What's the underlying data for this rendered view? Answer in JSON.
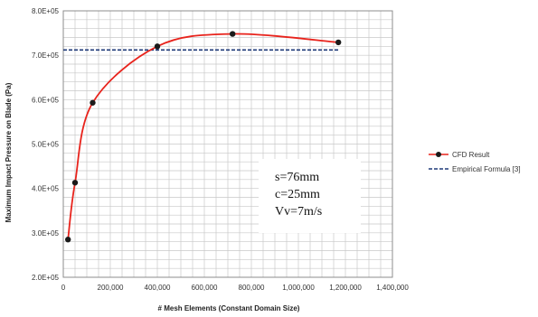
{
  "chart_data": {
    "type": "line",
    "title": "",
    "xlabel": "# Mesh Elements (Constant Domain Size)",
    "ylabel": "Maximum Impact Pressure on Blade (Pa)",
    "xlim": [
      0,
      1400000
    ],
    "ylim": [
      200000,
      800000
    ],
    "x_ticks": [
      0,
      200000,
      400000,
      600000,
      800000,
      1000000,
      1200000,
      1400000
    ],
    "x_tick_labels": [
      "0",
      "200,000",
      "400,000",
      "600,000",
      "800,000",
      "1,000,000",
      "1,200,000",
      "1,400,000"
    ],
    "y_ticks": [
      200000,
      300000,
      400000,
      500000,
      600000,
      700000,
      800000
    ],
    "y_tick_labels": [
      "2.0E+05",
      "3.0E+05",
      "4.0E+05",
      "5.0E+05",
      "6.0E+05",
      "7.0E+05",
      "8.0E+05"
    ],
    "grid": true,
    "legend_position": "right",
    "series": [
      {
        "name": "CFD Result",
        "color": "#e8231c",
        "marker": "circle",
        "x": [
          20000,
          50000,
          125000,
          400000,
          720000,
          1170000
        ],
        "y": [
          285000,
          413000,
          593000,
          720000,
          748000,
          729000
        ]
      },
      {
        "name": "Empirical Formula [3]",
        "color": "#1f3a78",
        "style": "dashed",
        "x": [
          0,
          1170000
        ],
        "y": [
          712000,
          712000
        ]
      }
    ],
    "annotations": [
      "s=76mm",
      "c=25mm",
      "Vv=7m/s"
    ]
  }
}
